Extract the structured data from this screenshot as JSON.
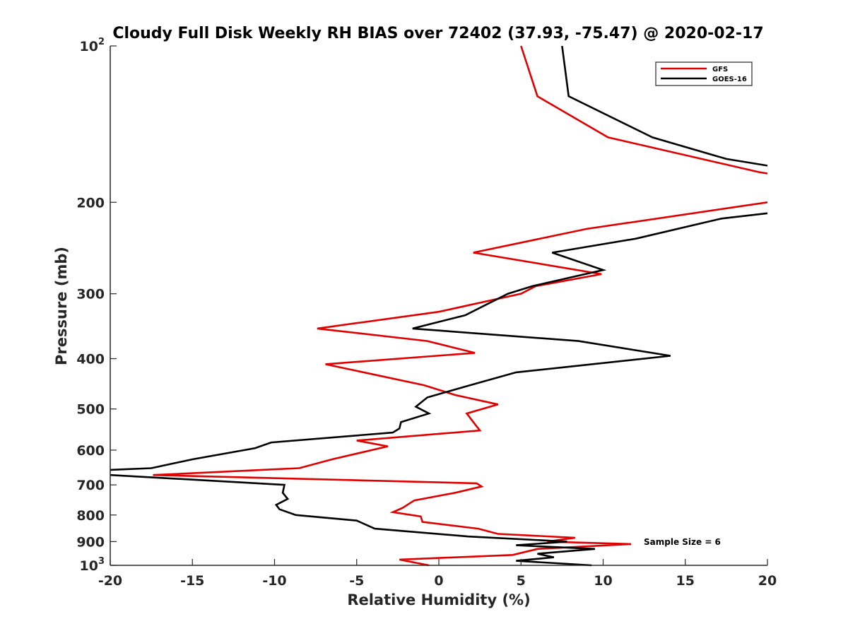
{
  "chart_data": {
    "type": "line",
    "title": "Cloudy Full Disk Weekly RH BIAS over 72402 (37.93, -75.47) @ 2020-02-17",
    "xlabel": "Relative Humidity (%)",
    "ylabel": "Pressure (mb)",
    "xlim": [
      -20,
      20
    ],
    "ylim": [
      100,
      1000
    ],
    "y_scale": "log",
    "y_reversed": true,
    "grid": false,
    "legend_position": "top-right",
    "x_ticks": [
      -20,
      -15,
      -10,
      -5,
      0,
      5,
      10,
      15,
      20
    ],
    "x_tick_labels": [
      "-20",
      "-15",
      "-10",
      "-5",
      "0",
      "5",
      "10",
      "15",
      "20"
    ],
    "y_ticks": [
      {
        "value": 100,
        "base": "10",
        "exp": "2"
      },
      {
        "value": 200,
        "base": "200",
        "exp": ""
      },
      {
        "value": 300,
        "base": "300",
        "exp": ""
      },
      {
        "value": 400,
        "base": "400",
        "exp": ""
      },
      {
        "value": 500,
        "base": "500",
        "exp": ""
      },
      {
        "value": 600,
        "base": "600",
        "exp": ""
      },
      {
        "value": 700,
        "base": "700",
        "exp": ""
      },
      {
        "value": 800,
        "base": "800",
        "exp": ""
      },
      {
        "value": 900,
        "base": "900",
        "exp": ""
      },
      {
        "value": 1000,
        "base": "10",
        "exp": "3"
      }
    ],
    "annotation": "Sample Size = 6",
    "series": [
      {
        "name": "GFS",
        "color": "#e00000",
        "segments": [
          [
            {
              "x": 5.0,
              "p": 100
            },
            {
              "x": 6.0,
              "p": 125
            },
            {
              "x": 10.3,
              "p": 150
            },
            {
              "x": 19.5,
              "p": 175
            },
            {
              "x": 20.0,
              "p": 176
            }
          ],
          [
            {
              "x": 20.0,
              "p": 200
            },
            {
              "x": 9.0,
              "p": 225
            },
            {
              "x": 2.1,
              "p": 250
            },
            {
              "x": 9.9,
              "p": 275
            },
            {
              "x": 5.9,
              "p": 290
            },
            {
              "x": 5.0,
              "p": 300
            },
            {
              "x": 0.0,
              "p": 325
            },
            {
              "x": -7.4,
              "p": 350
            },
            {
              "x": -0.7,
              "p": 370
            },
            {
              "x": 2.2,
              "p": 390
            },
            {
              "x": -6.9,
              "p": 410
            },
            {
              "x": -0.9,
              "p": 450
            },
            {
              "x": 1.0,
              "p": 470
            },
            {
              "x": 3.6,
              "p": 490
            },
            {
              "x": 1.7,
              "p": 510
            },
            {
              "x": 2.1,
              "p": 530
            },
            {
              "x": 2.5,
              "p": 550
            },
            {
              "x": -5.0,
              "p": 575
            },
            {
              "x": -3.1,
              "p": 590
            },
            {
              "x": -6.5,
              "p": 625
            },
            {
              "x": -8.5,
              "p": 650
            },
            {
              "x": -17.4,
              "p": 670
            },
            {
              "x": 2.3,
              "p": 695
            },
            {
              "x": 2.6,
              "p": 705
            },
            {
              "x": 1.0,
              "p": 725
            },
            {
              "x": -1.5,
              "p": 750
            },
            {
              "x": -2.2,
              "p": 775
            },
            {
              "x": -2.8,
              "p": 790
            },
            {
              "x": -1.1,
              "p": 805
            },
            {
              "x": -1.0,
              "p": 825
            },
            {
              "x": 2.4,
              "p": 850
            },
            {
              "x": 3.6,
              "p": 870
            },
            {
              "x": 8.3,
              "p": 885
            },
            {
              "x": 6.6,
              "p": 900
            },
            {
              "x": 11.7,
              "p": 910
            },
            {
              "x": 6.0,
              "p": 930
            },
            {
              "x": 4.5,
              "p": 955
            },
            {
              "x": -2.4,
              "p": 975
            },
            {
              "x": -0.6,
              "p": 1000
            }
          ]
        ]
      },
      {
        "name": "GOES-16",
        "color": "#000000",
        "segments": [
          [
            {
              "x": 7.5,
              "p": 100
            },
            {
              "x": 7.9,
              "p": 125
            },
            {
              "x": 13.0,
              "p": 150
            },
            {
              "x": 17.5,
              "p": 165
            },
            {
              "x": 20.0,
              "p": 170
            }
          ],
          [
            {
              "x": 20.0,
              "p": 210
            },
            {
              "x": 17.2,
              "p": 215
            },
            {
              "x": 12.0,
              "p": 235
            },
            {
              "x": 6.9,
              "p": 250
            },
            {
              "x": 10.0,
              "p": 270
            },
            {
              "x": 5.7,
              "p": 290
            },
            {
              "x": 4.2,
              "p": 300
            },
            {
              "x": 1.6,
              "p": 330
            },
            {
              "x": -1.6,
              "p": 350
            },
            {
              "x": 8.5,
              "p": 370
            },
            {
              "x": 14.1,
              "p": 395
            },
            {
              "x": 4.7,
              "p": 425
            },
            {
              "x": 1.9,
              "p": 450
            },
            {
              "x": -0.7,
              "p": 475
            },
            {
              "x": -1.4,
              "p": 495
            },
            {
              "x": -0.6,
              "p": 510
            },
            {
              "x": -2.3,
              "p": 530
            },
            {
              "x": -2.4,
              "p": 545
            },
            {
              "x": -2.8,
              "p": 555
            },
            {
              "x": -10.2,
              "p": 580
            },
            {
              "x": -11.2,
              "p": 595
            },
            {
              "x": -15.0,
              "p": 625
            },
            {
              "x": -17.5,
              "p": 650
            },
            {
              "x": -20.0,
              "p": 655
            }
          ],
          [
            {
              "x": -20.0,
              "p": 670
            },
            {
              "x": -9.4,
              "p": 700
            },
            {
              "x": -9.5,
              "p": 725
            },
            {
              "x": -9.2,
              "p": 745
            },
            {
              "x": -9.9,
              "p": 765
            },
            {
              "x": -9.7,
              "p": 780
            },
            {
              "x": -8.7,
              "p": 800
            },
            {
              "x": -5.0,
              "p": 820
            },
            {
              "x": -3.9,
              "p": 850
            },
            {
              "x": 1.8,
              "p": 880
            },
            {
              "x": 7.8,
              "p": 900
            },
            {
              "x": 4.7,
              "p": 915
            },
            {
              "x": 9.5,
              "p": 930
            },
            {
              "x": 6.0,
              "p": 950
            },
            {
              "x": 7.0,
              "p": 965
            },
            {
              "x": 4.7,
              "p": 980
            },
            {
              "x": 9.3,
              "p": 1000
            }
          ]
        ]
      }
    ]
  }
}
